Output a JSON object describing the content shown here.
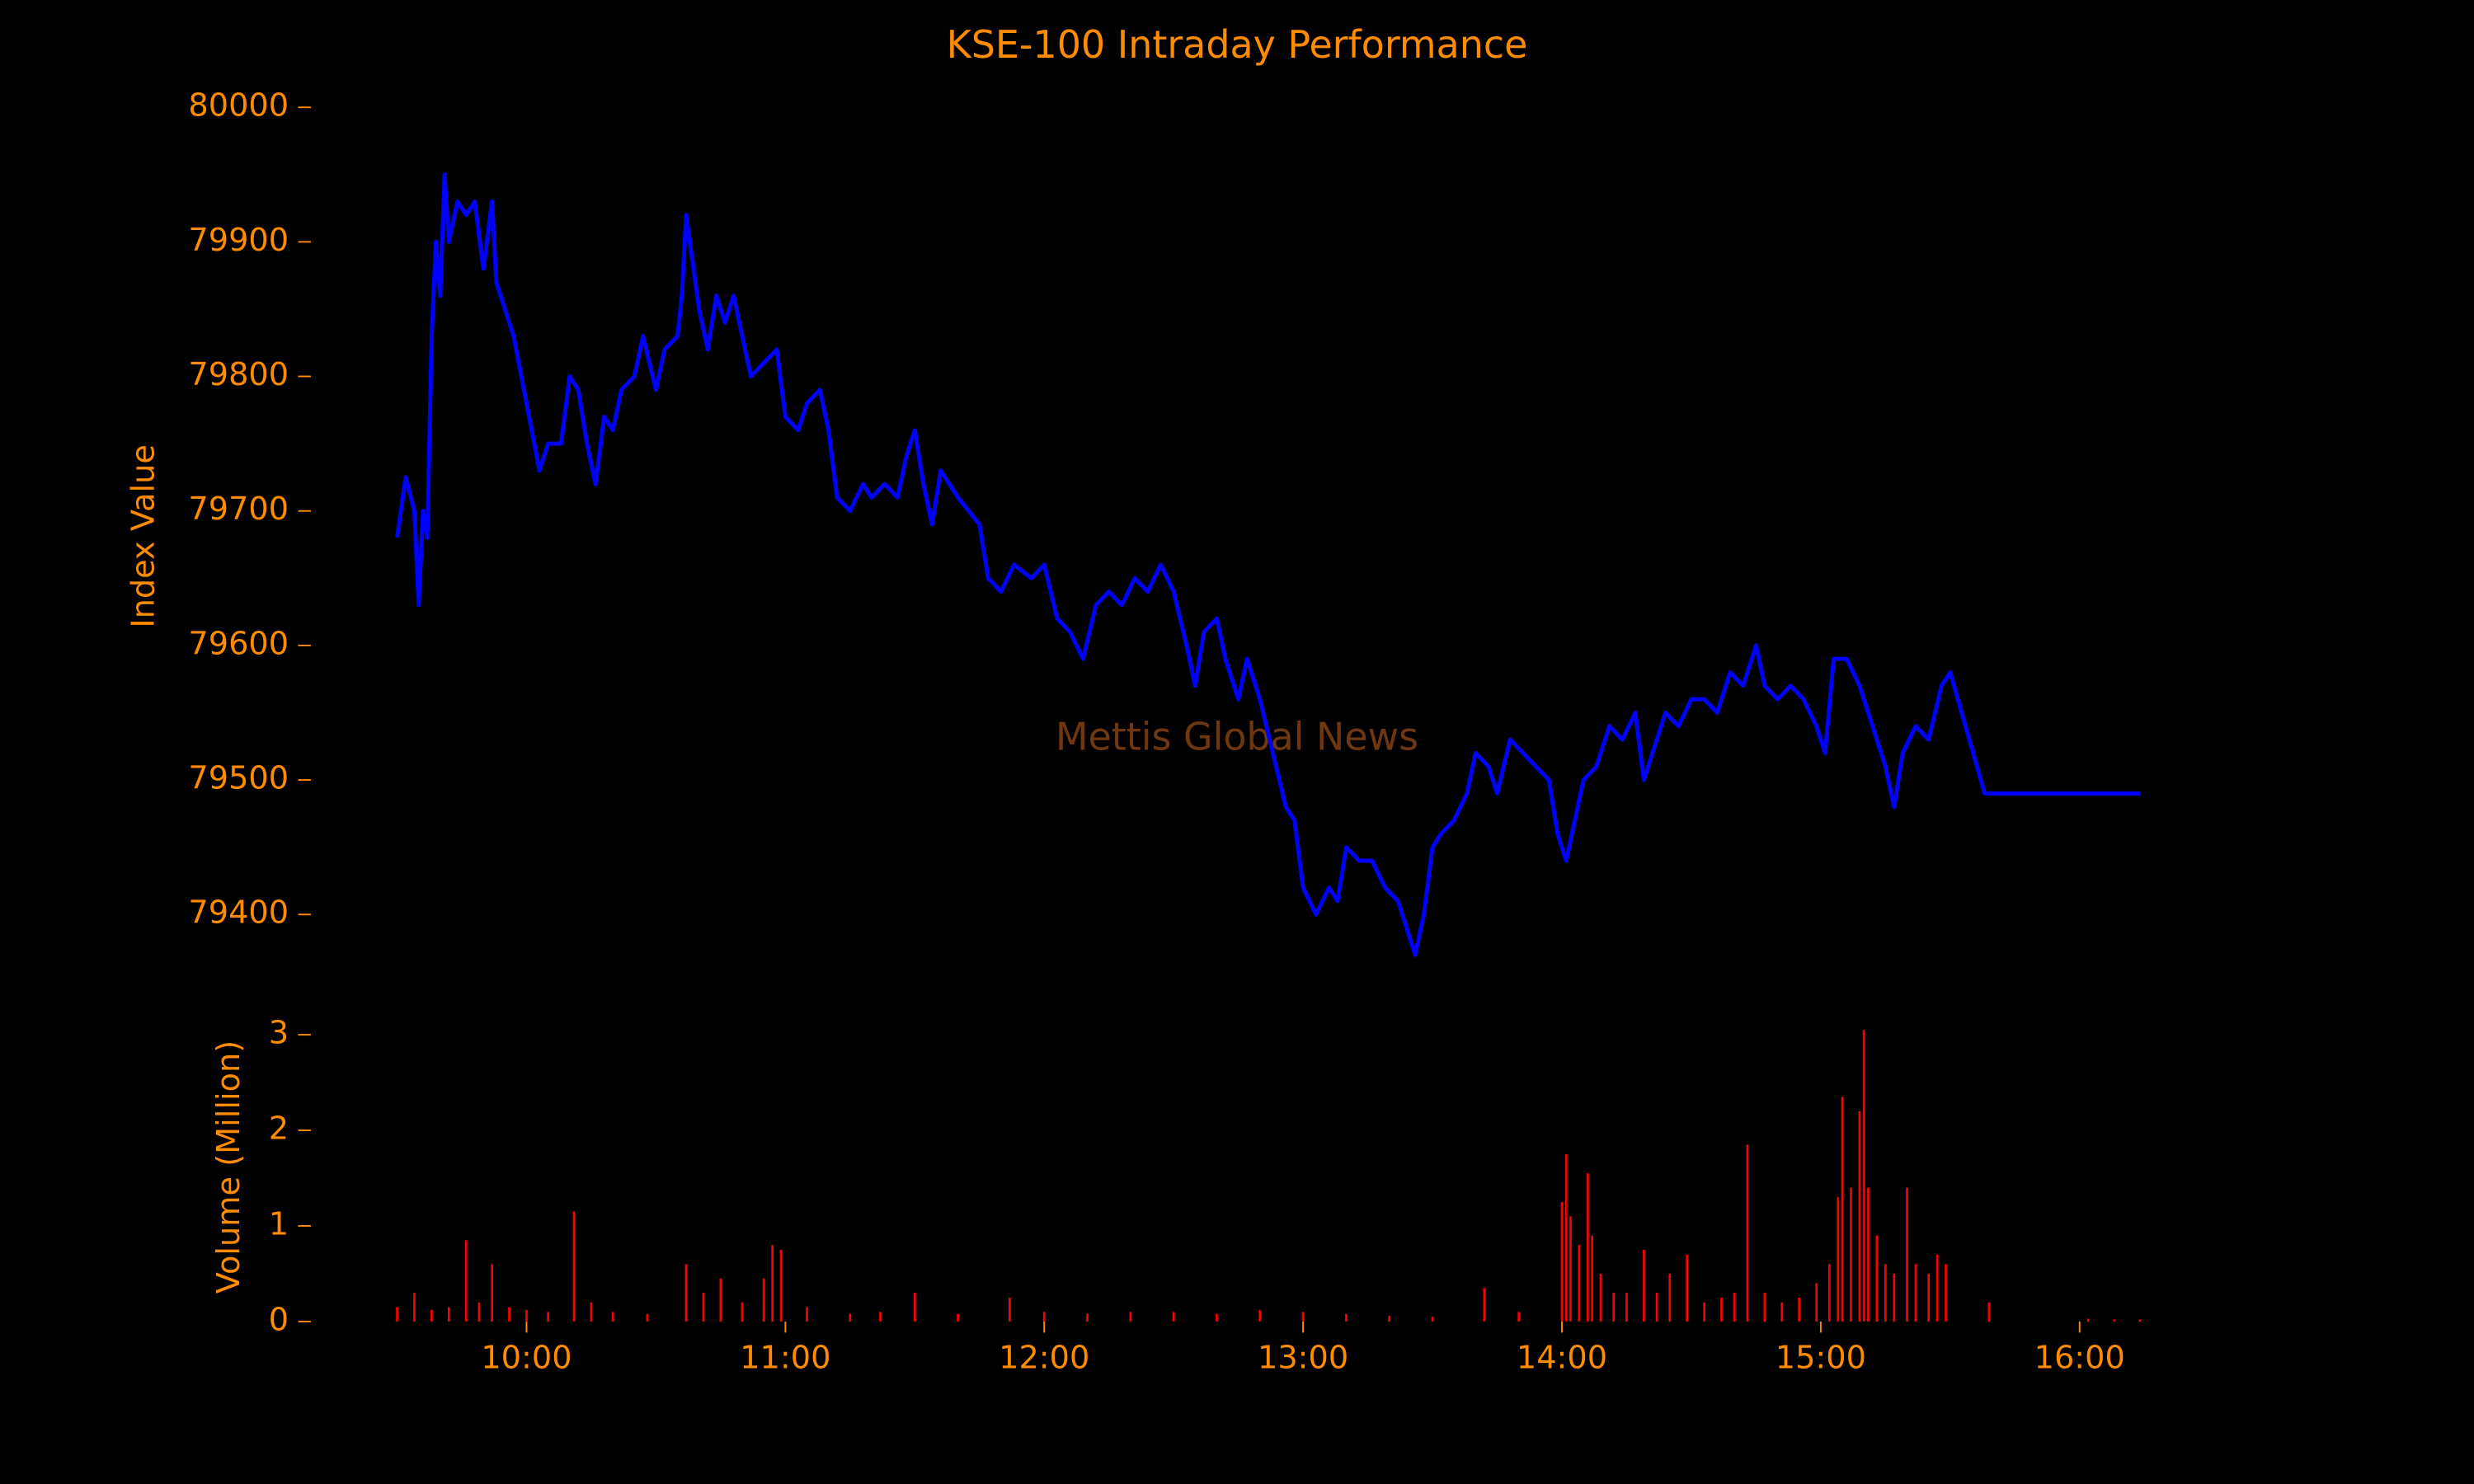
{
  "watermark": "Mettis Global News",
  "chart_data": [
    {
      "type": "line",
      "title": "KSE-100 Intraday Performance",
      "ylabel": "Index Value",
      "color": "#0000ff",
      "x": [
        "09:30",
        "09:32",
        "09:34",
        "09:35",
        "09:36",
        "09:37",
        "09:38",
        "09:39",
        "09:40",
        "09:41",
        "09:42",
        "09:44",
        "09:46",
        "09:48",
        "09:50",
        "09:52",
        "09:53",
        "09:55",
        "09:57",
        "10:00",
        "10:03",
        "10:05",
        "10:08",
        "10:10",
        "10:12",
        "10:14",
        "10:16",
        "10:18",
        "10:20",
        "10:22",
        "10:25",
        "10:27",
        "10:30",
        "10:32",
        "10:35",
        "10:36",
        "10:37",
        "10:40",
        "10:42",
        "10:44",
        "10:46",
        "10:48",
        "10:50",
        "10:52",
        "10:55",
        "10:58",
        "11:00",
        "11:03",
        "11:05",
        "11:08",
        "11:10",
        "11:12",
        "11:15",
        "11:18",
        "11:20",
        "11:23",
        "11:26",
        "11:28",
        "11:30",
        "11:32",
        "11:34",
        "11:36",
        "11:40",
        "11:45",
        "11:47",
        "11:50",
        "11:53",
        "11:57",
        "12:00",
        "12:03",
        "12:06",
        "12:09",
        "12:12",
        "12:15",
        "12:18",
        "12:21",
        "12:24",
        "12:27",
        "12:30",
        "12:33",
        "12:35",
        "12:37",
        "12:40",
        "12:42",
        "12:45",
        "12:47",
        "12:50",
        "12:53",
        "12:56",
        "12:58",
        "13:00",
        "13:03",
        "13:06",
        "13:08",
        "13:10",
        "13:13",
        "13:16",
        "13:19",
        "13:22",
        "13:26",
        "13:28",
        "13:30",
        "13:32",
        "13:35",
        "13:38",
        "13:40",
        "13:43",
        "13:45",
        "13:48",
        "13:51",
        "13:54",
        "13:57",
        "13:59",
        "14:01",
        "14:03",
        "14:05",
        "14:08",
        "14:11",
        "14:14",
        "14:17",
        "14:19",
        "14:21",
        "14:24",
        "14:27",
        "14:30",
        "14:33",
        "14:36",
        "14:39",
        "14:42",
        "14:45",
        "14:47",
        "14:50",
        "14:53",
        "14:56",
        "14:59",
        "15:01",
        "15:03",
        "15:06",
        "15:09",
        "15:11",
        "15:13",
        "15:15",
        "15:17",
        "15:19",
        "15:22",
        "15:25",
        "15:28",
        "15:30",
        "15:38",
        "16:14"
      ],
      "values": [
        79680,
        79725,
        79700,
        79630,
        79700,
        79680,
        79830,
        79900,
        79860,
        79950,
        79900,
        79930,
        79920,
        79930,
        79880,
        79930,
        79870,
        79850,
        79830,
        79780,
        79730,
        79750,
        79750,
        79800,
        79790,
        79750,
        79720,
        79770,
        79760,
        79790,
        79800,
        79830,
        79790,
        79820,
        79830,
        79860,
        79920,
        79850,
        79820,
        79860,
        79840,
        79860,
        79830,
        79800,
        79810,
        79820,
        79770,
        79760,
        79780,
        79790,
        79760,
        79710,
        79700,
        79720,
        79710,
        79720,
        79710,
        79740,
        79760,
        79720,
        79690,
        79730,
        79710,
        79690,
        79650,
        79640,
        79660,
        79650,
        79660,
        79620,
        79610,
        79590,
        79630,
        79640,
        79630,
        79650,
        79640,
        79660,
        79640,
        79600,
        79570,
        79610,
        79620,
        79590,
        79560,
        79590,
        79560,
        79520,
        79480,
        79470,
        79420,
        79400,
        79420,
        79410,
        79450,
        79440,
        79440,
        79420,
        79410,
        79370,
        79400,
        79450,
        79460,
        79470,
        79490,
        79520,
        79510,
        79490,
        79530,
        79520,
        79510,
        79500,
        79460,
        79440,
        79470,
        79500,
        79510,
        79540,
        79530,
        79550,
        79500,
        79520,
        79550,
        79540,
        79560,
        79560,
        79550,
        79580,
        79570,
        79600,
        79570,
        79560,
        79570,
        79560,
        79540,
        79520,
        79590,
        79590,
        79570,
        79550,
        79530,
        79510,
        79480,
        79520,
        79540,
        79530,
        79570,
        79580,
        79490,
        79490
      ],
      "xlim": [
        "09:10",
        "16:34"
      ],
      "ylim": [
        79360,
        80020
      ],
      "yticks": [
        79400,
        79500,
        79600,
        79700,
        79800,
        79900,
        80000
      ]
    },
    {
      "type": "bar",
      "ylabel": "Volume (Million)",
      "color": "#ff0000",
      "x": [
        "09:30",
        "09:34",
        "09:38",
        "09:42",
        "09:46",
        "09:49",
        "09:52",
        "09:56",
        "10:00",
        "10:05",
        "10:11",
        "10:15",
        "10:20",
        "10:28",
        "10:37",
        "10:41",
        "10:45",
        "10:50",
        "10:55",
        "10:57",
        "10:59",
        "11:05",
        "11:15",
        "11:22",
        "11:30",
        "11:40",
        "11:52",
        "12:00",
        "12:10",
        "12:20",
        "12:30",
        "12:40",
        "12:50",
        "13:00",
        "13:10",
        "13:20",
        "13:30",
        "13:42",
        "13:50",
        "14:00",
        "14:01",
        "14:02",
        "14:04",
        "14:06",
        "14:07",
        "14:09",
        "14:12",
        "14:15",
        "14:19",
        "14:22",
        "14:25",
        "14:29",
        "14:33",
        "14:37",
        "14:40",
        "14:43",
        "14:47",
        "14:51",
        "14:55",
        "14:59",
        "15:02",
        "15:04",
        "15:05",
        "15:07",
        "15:09",
        "15:10",
        "15:11",
        "15:13",
        "15:15",
        "15:17",
        "15:20",
        "15:22",
        "15:25",
        "15:27",
        "15:29",
        "15:39",
        "16:02",
        "16:08",
        "16:14"
      ],
      "values": [
        0.15,
        0.3,
        0.12,
        0.15,
        0.85,
        0.2,
        0.6,
        0.15,
        0.12,
        0.1,
        1.15,
        0.2,
        0.1,
        0.08,
        0.6,
        0.3,
        0.45,
        0.2,
        0.45,
        0.8,
        0.75,
        0.15,
        0.08,
        0.1,
        0.3,
        0.08,
        0.25,
        0.1,
        0.08,
        0.1,
        0.1,
        0.08,
        0.12,
        0.1,
        0.08,
        0.06,
        0.05,
        0.35,
        0.1,
        1.25,
        1.75,
        1.1,
        0.8,
        1.55,
        0.9,
        0.5,
        0.3,
        0.3,
        0.75,
        0.3,
        0.5,
        0.7,
        0.2,
        0.25,
        0.3,
        1.85,
        0.3,
        0.2,
        0.25,
        0.4,
        0.6,
        1.3,
        2.35,
        1.4,
        2.2,
        3.05,
        1.4,
        0.9,
        0.6,
        0.5,
        1.4,
        0.6,
        0.5,
        0.7,
        0.6,
        0.2,
        0.03,
        0.02,
        0.02
      ],
      "xlim": [
        "09:10",
        "16:34"
      ],
      "xticks": [
        "10:00",
        "11:00",
        "12:00",
        "13:00",
        "14:00",
        "15:00",
        "16:00"
      ],
      "ylim": [
        -0.05,
        3.2
      ],
      "yticks": [
        0,
        1,
        2,
        3
      ]
    }
  ]
}
